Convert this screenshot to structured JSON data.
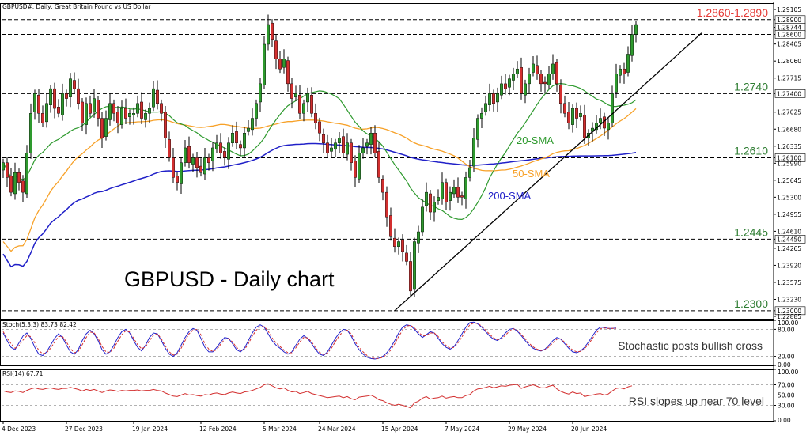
{
  "chart_data": [
    {
      "type": "candlestick",
      "header": "GBPUSD#, Daily:  Great Britain Pound vs US Dollar",
      "title": "GBPUSD - Daily chart",
      "ylim": [
        1.22885,
        1.29105
      ],
      "y_ticks": [
        "1.29105",
        "1.28900",
        "1.28744",
        "1.28600",
        "1.28405",
        "1.28060",
        "1.27715",
        "1.27400",
        "1.27025",
        "1.26680",
        "1.26335",
        "1.26100",
        "1.25990",
        "1.25645",
        "1.25300",
        "1.24955",
        "1.24610",
        "1.24450",
        "1.24265",
        "1.23920",
        "1.23575",
        "1.23230",
        "1.23000",
        "1.22885"
      ],
      "x_ticks": [
        {
          "label": "4 Dec 2023",
          "i": 0
        },
        {
          "label": "27 Dec 2023",
          "i": 16
        },
        {
          "label": "19 Jan 2024",
          "i": 33
        },
        {
          "label": "12 Feb 2024",
          "i": 50
        },
        {
          "label": "5 Mar 2024",
          "i": 66
        },
        {
          "label": "24 Mar 2024",
          "i": 80
        },
        {
          "label": "15 Apr 2024",
          "i": 96
        },
        {
          "label": "7 May 2024",
          "i": 112
        },
        {
          "label": "29 May 2024",
          "i": 128
        },
        {
          "label": "20 Jun 2024",
          "i": 144
        }
      ],
      "levels": [
        {
          "value": 1.289,
          "text": "1.2860-1.2890",
          "color": "#e53935"
        },
        {
          "value": 1.286,
          "text": "",
          "color": "#e53935"
        },
        {
          "value": 1.274,
          "text": "1.2740",
          "color": "#2e7d32"
        },
        {
          "value": 1.261,
          "text": "1.2610",
          "color": "#2e7d32"
        },
        {
          "value": 1.2445,
          "text": "1.2445",
          "color": "#2e7d32"
        },
        {
          "value": 1.23,
          "text": "1.2300",
          "color": "#2e7d32"
        }
      ],
      "trendline": {
        "from": [
          99,
          1.23
        ],
        "to": [
          176,
          1.281
        ]
      },
      "closes": [
        1.26,
        1.257,
        1.254,
        1.258,
        1.256,
        1.254,
        1.262,
        1.27,
        1.274,
        1.27,
        1.268,
        1.272,
        1.275,
        1.271,
        1.27,
        1.274,
        1.273,
        1.277,
        1.275,
        1.272,
        1.268,
        1.272,
        1.27,
        1.273,
        1.269,
        1.265,
        1.269,
        1.272,
        1.27,
        1.268,
        1.271,
        1.269,
        1.27,
        1.27,
        1.272,
        1.269,
        1.27,
        1.271,
        1.275,
        1.272,
        1.27,
        1.265,
        1.261,
        1.257,
        1.256,
        1.26,
        1.263,
        1.26,
        1.261,
        1.259,
        1.258,
        1.261,
        1.26,
        1.263,
        1.264,
        1.262,
        1.261,
        1.264,
        1.266,
        1.264,
        1.263,
        1.266,
        1.267,
        1.269,
        1.272,
        1.276,
        1.284,
        1.288,
        1.285,
        1.281,
        1.279,
        1.281,
        1.276,
        1.273,
        1.274,
        1.27,
        1.272,
        1.274,
        1.27,
        1.268,
        1.266,
        1.264,
        1.262,
        1.263,
        1.264,
        1.265,
        1.262,
        1.264,
        1.26,
        1.257,
        1.262,
        1.263,
        1.264,
        1.266,
        1.262,
        1.257,
        1.254,
        1.249,
        1.245,
        1.243,
        1.244,
        1.242,
        1.24,
        1.234,
        1.244,
        1.246,
        1.251,
        1.254,
        1.25,
        1.252,
        1.253,
        1.256,
        1.252,
        1.254,
        1.255,
        1.253,
        1.253,
        1.257,
        1.259,
        1.265,
        1.269,
        1.27,
        1.272,
        1.274,
        1.272,
        1.274,
        1.276,
        1.275,
        1.277,
        1.278,
        1.279,
        1.274,
        1.276,
        1.278,
        1.28,
        1.278,
        1.276,
        1.276,
        1.278,
        1.28,
        1.276,
        1.272,
        1.27,
        1.268,
        1.271,
        1.269,
        1.27,
        1.265,
        1.266,
        1.267,
        1.268,
        1.269,
        1.267,
        1.268,
        1.274,
        1.278,
        1.279,
        1.278,
        1.282,
        1.286,
        1.288
      ],
      "series": [
        {
          "name": "20-SMA",
          "color": "#2e9a2e"
        },
        {
          "name": "50-SMA",
          "color": "#f7a128"
        },
        {
          "name": "200-SMA",
          "color": "#2020c8"
        }
      ],
      "bull_color": "#2e9a2e",
      "bear_color": "#d32f2f"
    },
    {
      "type": "line",
      "header": "Stoch(5,3,3) 83.73 82.42",
      "annotation": "Stochastic posts bullish cross",
      "ylim": [
        0,
        100
      ],
      "y_ticks": [
        "100.00",
        "80.00",
        "20.00",
        "0.00"
      ],
      "levels": [
        80,
        20
      ],
      "series": [
        {
          "name": "",
          "color": "#2222cc",
          "values": [
            72,
            55,
            40,
            35,
            50,
            65,
            72,
            60,
            40,
            25,
            22,
            30,
            45,
            60,
            70,
            62,
            45,
            30,
            25,
            35,
            55,
            70,
            78,
            70,
            55,
            35,
            25,
            30,
            45,
            62,
            75,
            80,
            72,
            55,
            40,
            32,
            45,
            62,
            72,
            70,
            55,
            38,
            25,
            20,
            28,
            45,
            62,
            75,
            82,
            78,
            60,
            40,
            30,
            30,
            40,
            52,
            62,
            60,
            48,
            35,
            30,
            38,
            55,
            72,
            85,
            90,
            85,
            70,
            55,
            45,
            38,
            30,
            25,
            30,
            45,
            58,
            66,
            60,
            48,
            35,
            25,
            22,
            30,
            45,
            60,
            72,
            80,
            78,
            65,
            48,
            35,
            25,
            18,
            15,
            14,
            16,
            20,
            28,
            40,
            55,
            72,
            85,
            90,
            88,
            80,
            70,
            62,
            68,
            75,
            72,
            60,
            48,
            40,
            36,
            42,
            55,
            70,
            85,
            95,
            96,
            92,
            85,
            75,
            65,
            58,
            55,
            62,
            72,
            80,
            82,
            76,
            66,
            55,
            45,
            38,
            34,
            32,
            36,
            45,
            55,
            62,
            58,
            48,
            38,
            30,
            28,
            32,
            40,
            52,
            65,
            78,
            85,
            84,
            82,
            82,
            83
          ]
        },
        {
          "name": "",
          "color": "#d32f2f",
          "values": [
            75,
            60,
            48,
            38,
            44,
            56,
            66,
            64,
            50,
            33,
            26,
            28,
            38,
            52,
            64,
            64,
            52,
            37,
            28,
            31,
            46,
            62,
            74,
            72,
            60,
            42,
            30,
            29,
            38,
            54,
            68,
            77,
            74,
            60,
            46,
            37,
            41,
            55,
            67,
            70,
            59,
            43,
            30,
            23,
            25,
            38,
            55,
            70,
            78,
            80,
            68,
            48,
            36,
            31,
            35,
            47,
            58,
            60,
            52,
            40,
            33,
            35,
            48,
            65,
            78,
            86,
            86,
            76,
            61,
            50,
            42,
            34,
            28,
            28,
            39,
            52,
            62,
            61,
            52,
            39,
            29,
            24,
            27,
            38,
            53,
            66,
            76,
            78,
            70,
            53,
            40,
            30,
            22,
            17,
            15,
            15,
            18,
            24,
            34,
            48,
            64,
            78,
            87,
            89,
            83,
            74,
            66,
            66,
            72,
            72,
            64,
            52,
            44,
            38,
            40,
            50,
            63,
            78,
            90,
            94,
            93,
            87,
            78,
            69,
            61,
            57,
            59,
            67,
            76,
            81,
            78,
            69,
            59,
            49,
            41,
            36,
            33,
            35,
            41,
            50,
            58,
            59,
            51,
            42,
            34,
            30,
            31,
            37,
            47,
            60,
            72,
            81,
            83,
            82,
            82,
            82
          ]
        }
      ]
    },
    {
      "type": "line",
      "header": "RSI(14) 67.71",
      "annotation": "RSI slopes up near 70 level",
      "ylim": [
        0,
        100
      ],
      "y_ticks": [
        "100.00",
        "70.00",
        "50.00",
        "30.00",
        "0.00"
      ],
      "levels": [
        70,
        30
      ],
      "series": [
        {
          "name": "",
          "color": "#d32f2f",
          "values": [
            58,
            56,
            55,
            58,
            57,
            55,
            59,
            62,
            64,
            62,
            61,
            63,
            64,
            62,
            61,
            63,
            63,
            65,
            63,
            61,
            58,
            61,
            59,
            61,
            58,
            55,
            58,
            60,
            59,
            57,
            59,
            58,
            59,
            59,
            60,
            58,
            59,
            59,
            61,
            59,
            58,
            54,
            51,
            48,
            47,
            50,
            53,
            50,
            51,
            49,
            48,
            51,
            50,
            53,
            54,
            52,
            51,
            54,
            56,
            54,
            53,
            56,
            57,
            59,
            62,
            65,
            70,
            72,
            68,
            64,
            62,
            64,
            59,
            56,
            57,
            53,
            55,
            57,
            53,
            51,
            49,
            47,
            45,
            46,
            47,
            48,
            45,
            47,
            43,
            41,
            46,
            47,
            48,
            50,
            46,
            41,
            39,
            35,
            32,
            30,
            32,
            30,
            28,
            25,
            35,
            38,
            44,
            47,
            42,
            44,
            45,
            48,
            44,
            46,
            47,
            45,
            45,
            49,
            51,
            58,
            62,
            63,
            65,
            67,
            64,
            66,
            68,
            67,
            69,
            70,
            71,
            63,
            66,
            68,
            70,
            67,
            64,
            64,
            67,
            69,
            62,
            57,
            54,
            52,
            56,
            53,
            54,
            47,
            49,
            50,
            52,
            53,
            50,
            52,
            58,
            63,
            64,
            62,
            66,
            68
          ]
        }
      ]
    }
  ],
  "labels": {
    "sma20": "20-SMA",
    "sma50": "50-SMA",
    "sma200": "200-SMA"
  }
}
